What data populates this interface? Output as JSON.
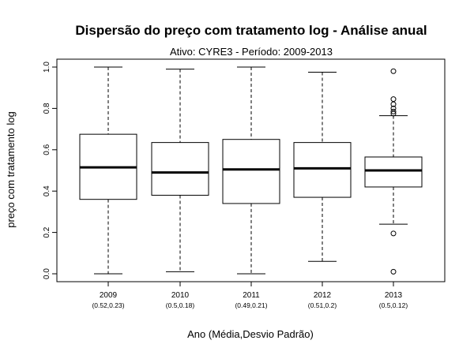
{
  "chart_data": {
    "type": "boxplot",
    "title": "Dispersão do  preço com tratamento log  - Análise anual",
    "subtitle": "Ativo: CYRE3 - Período: 2009-2013",
    "xlabel": "Ano (Média,Desvio Padrão)",
    "ylabel": "preço com tratamento log",
    "ylim": [
      0,
      1
    ],
    "y_ticks": [
      "0.0",
      "0.2",
      "0.4",
      "0.6",
      "0.8",
      "1.0"
    ],
    "grid": false,
    "categories": [
      "2009",
      "2010",
      "2011",
      "2012",
      "2013"
    ],
    "category_stats": [
      "(0.52,0.23)",
      "(0.5,0.18)",
      "(0.49,0.21)",
      "(0.51,0.2)",
      "(0.5,0.12)"
    ],
    "boxes": [
      {
        "label": "2009",
        "whisker_low": 0.0,
        "q1": 0.36,
        "median": 0.515,
        "q3": 0.675,
        "whisker_high": 1.0,
        "outliers": []
      },
      {
        "label": "2010",
        "whisker_low": 0.01,
        "q1": 0.38,
        "median": 0.49,
        "q3": 0.635,
        "whisker_high": 0.99,
        "outliers": []
      },
      {
        "label": "2011",
        "whisker_low": 0.0,
        "q1": 0.34,
        "median": 0.505,
        "q3": 0.65,
        "whisker_high": 1.0,
        "outliers": []
      },
      {
        "label": "2012",
        "whisker_low": 0.06,
        "q1": 0.37,
        "median": 0.51,
        "q3": 0.635,
        "whisker_high": 0.975,
        "outliers": []
      },
      {
        "label": "2013",
        "whisker_low": 0.24,
        "q1": 0.42,
        "median": 0.5,
        "q3": 0.565,
        "whisker_high": 0.765,
        "outliers": [
          0.98,
          0.845,
          0.82,
          0.8,
          0.785,
          0.775,
          0.195,
          0.01
        ]
      }
    ]
  }
}
